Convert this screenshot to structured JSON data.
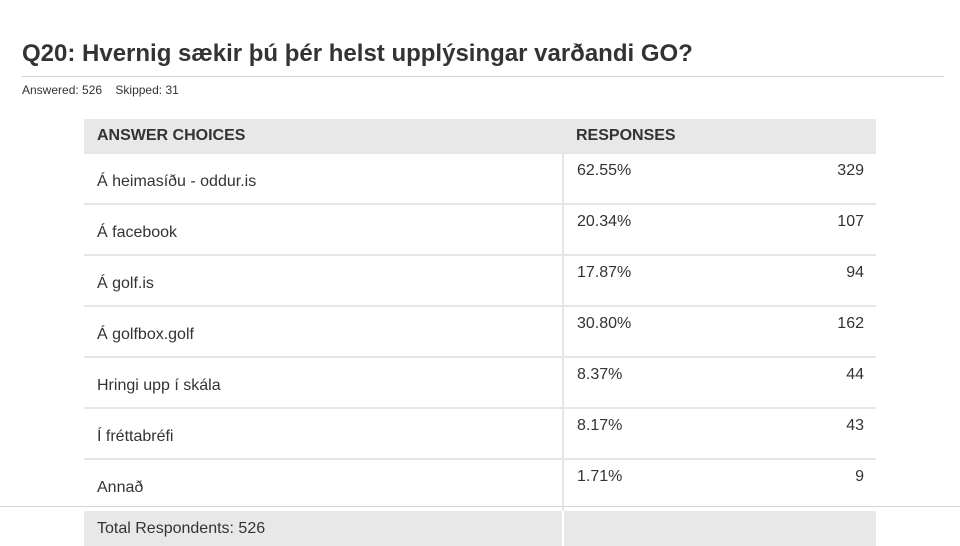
{
  "question": {
    "title": "Q20: Hvernig sækir þú þér helst upplýsingar varðandi GO?",
    "answered": "Answered: 526",
    "skipped": "Skipped: 31"
  },
  "table": {
    "headers": {
      "choices": "ANSWER CHOICES",
      "responses": "RESPONSES"
    },
    "rows": [
      {
        "choice": "Á heimasíðu - oddur.is",
        "percent": "62.55%",
        "count": "329"
      },
      {
        "choice": "Á facebook",
        "percent": "20.34%",
        "count": "107"
      },
      {
        "choice": "Á golf.is",
        "percent": "17.87%",
        "count": "94"
      },
      {
        "choice": "Á golfbox.golf",
        "percent": "30.80%",
        "count": "162"
      },
      {
        "choice": "Hringi upp í skála",
        "percent": "8.37%",
        "count": "44"
      },
      {
        "choice": "Í fréttabréfi",
        "percent": "8.17%",
        "count": "43"
      },
      {
        "choice": "Annað",
        "percent": "1.71%",
        "count": "9"
      }
    ],
    "total": "Total Respondents: 526"
  }
}
